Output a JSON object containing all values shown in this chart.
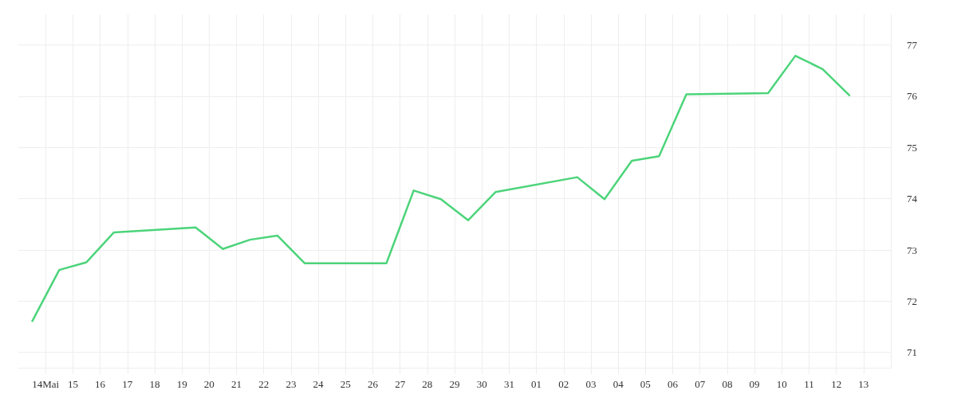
{
  "chart_data": {
    "type": "line",
    "x": [
      "--05-13T12:00",
      "--05-14T12:00",
      "--05-15T12:00",
      "--05-16T12:00",
      "--05-19T12:00",
      "--05-20T12:00",
      "--05-21T12:00",
      "--05-22T12:00",
      "--05-23T12:00",
      "--05-26T12:00",
      "--05-27T12:00",
      "--05-28T12:00",
      "--05-29T12:00",
      "--05-30T12:00",
      "--06-02T12:00",
      "--06-03T12:00",
      "--06-04T12:00",
      "--06-05T12:00",
      "--06-06T12:00",
      "--06-09T12:00",
      "--06-10T12:00",
      "--06-11T12:00",
      "--06-12T12:00"
    ],
    "series": [
      {
        "color": "#4cd47a",
        "values": [
          71.6,
          72.61,
          72.76,
          73.34,
          73.44,
          73.02,
          73.2,
          73.28,
          72.74,
          72.74,
          74.16,
          73.99,
          73.58,
          74.13,
          74.42,
          73.99,
          74.74,
          74.83,
          76.04,
          76.06,
          76.79,
          76.53,
          76.01
        ]
      }
    ],
    "xlim": [
      "--05-13",
      "--06-14"
    ],
    "xticks": [
      {
        "value": "--05-14",
        "label": "14Mai"
      },
      {
        "value": "--05-15",
        "label": "15"
      },
      {
        "value": "--05-16",
        "label": "16"
      },
      {
        "value": "--05-17",
        "label": "17"
      },
      {
        "value": "--05-18",
        "label": "18"
      },
      {
        "value": "--05-19",
        "label": "19"
      },
      {
        "value": "--05-20",
        "label": "20"
      },
      {
        "value": "--05-21",
        "label": "21"
      },
      {
        "value": "--05-22",
        "label": "22"
      },
      {
        "value": "--05-23",
        "label": "23"
      },
      {
        "value": "--05-24",
        "label": "24"
      },
      {
        "value": "--05-25",
        "label": "25"
      },
      {
        "value": "--05-26",
        "label": "26"
      },
      {
        "value": "--05-27",
        "label": "27"
      },
      {
        "value": "--05-28",
        "label": "28"
      },
      {
        "value": "--05-29",
        "label": "29"
      },
      {
        "value": "--05-30",
        "label": "30"
      },
      {
        "value": "--05-31",
        "label": "31"
      },
      {
        "value": "--06-01",
        "label": "01"
      },
      {
        "value": "--06-02",
        "label": "02"
      },
      {
        "value": "--06-03",
        "label": "03"
      },
      {
        "value": "--06-04",
        "label": "04"
      },
      {
        "value": "--06-05",
        "label": "05"
      },
      {
        "value": "--06-06",
        "label": "06"
      },
      {
        "value": "--06-07",
        "label": "07"
      },
      {
        "value": "--06-08",
        "label": "08"
      },
      {
        "value": "--06-09",
        "label": "09"
      },
      {
        "value": "--06-10",
        "label": "10"
      },
      {
        "value": "--06-11",
        "label": "11"
      },
      {
        "value": "--06-12",
        "label": "12"
      },
      {
        "value": "--06-13",
        "label": "13"
      }
    ],
    "ylim": [
      70.7,
      77.6
    ],
    "yticks": [
      71,
      72,
      73,
      74,
      75,
      76,
      77
    ],
    "grid": true,
    "marker": "none",
    "line_style": "solid"
  }
}
